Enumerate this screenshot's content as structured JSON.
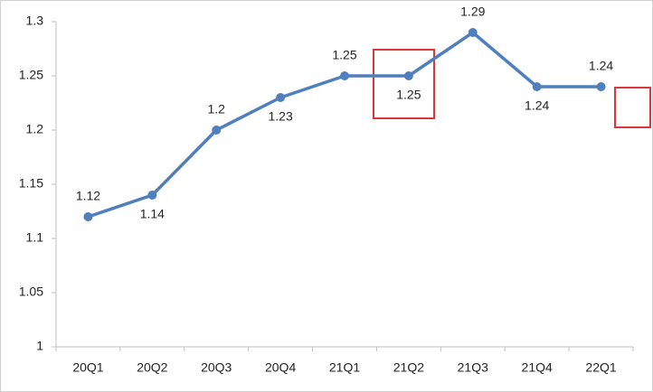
{
  "chart_data": {
    "type": "line",
    "categories": [
      "20Q1",
      "20Q2",
      "20Q3",
      "20Q4",
      "21Q1",
      "21Q2",
      "21Q3",
      "21Q4",
      "22Q1"
    ],
    "values": [
      1.12,
      1.14,
      1.2,
      1.23,
      1.25,
      1.25,
      1.29,
      1.24,
      1.24
    ],
    "color": "#4f7fbd",
    "ylim": [
      1,
      1.3
    ],
    "yticks": [
      1,
      1.05,
      1.1,
      1.15,
      1.2,
      1.25,
      1.3
    ],
    "grid": false
  }
}
